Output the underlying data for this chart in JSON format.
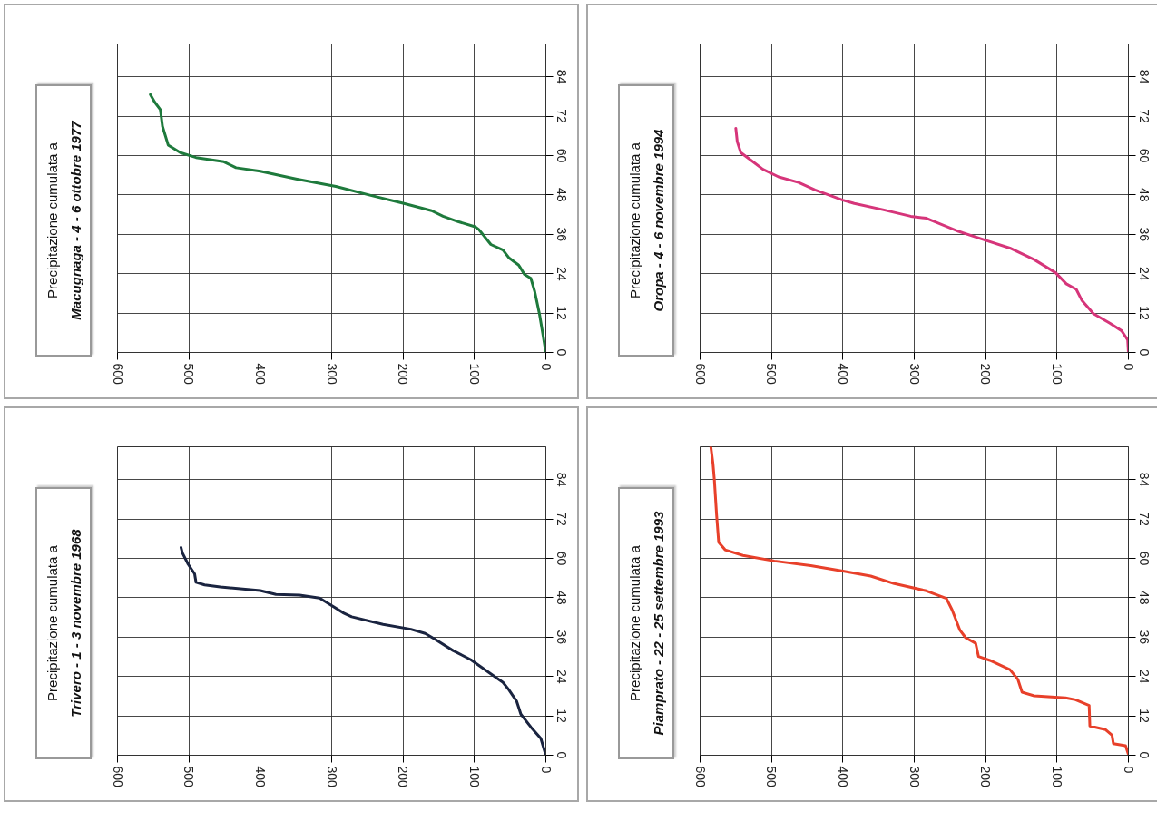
{
  "chart_data": [
    {
      "type": "line",
      "title": "Precipitazione cumulata a",
      "subtitle": "Macugnaga - 4 - 6 ottobre 1977",
      "color": "#1e7a3c",
      "x": [
        0,
        4.5,
        9,
        15.6,
        21,
        30,
        38,
        52,
        60,
        77,
        94,
        99,
        122,
        144,
        160,
        200,
        244,
        294,
        350,
        400,
        434,
        451,
        490,
        512,
        529,
        537,
        540,
        548,
        554
      ],
      "values": [
        0,
        6,
        11.8,
        18.6,
        22.6,
        23.8,
        26.6,
        28.9,
        31.2,
        32.9,
        37.5,
        38.3,
        39.8,
        41.5,
        43.2,
        45.5,
        47.8,
        50.6,
        52.9,
        55.2,
        56.3,
        58.1,
        59.4,
        60.9,
        63.2,
        68.9,
        74,
        76.3,
        78.6
      ],
      "xlim": [
        600,
        0
      ],
      "xticks": [
        600,
        500,
        400,
        300,
        200,
        100,
        0
      ],
      "ylim": [
        0,
        94
      ],
      "yticks": [
        0,
        12,
        24,
        36,
        48,
        60,
        72,
        84
      ],
      "grid": true
    },
    {
      "type": "line",
      "title": "Precipitazione cumulata a",
      "subtitle": "Oropa - 4 - 6 novembre 1994",
      "color": "#d6357a",
      "x": [
        0,
        1,
        9.5,
        26,
        49,
        65,
        73,
        87,
        102,
        132,
        166,
        199,
        238,
        283,
        305,
        344,
        384,
        400,
        439,
        462,
        490,
        512,
        529,
        543,
        548,
        550
      ],
      "values": [
        0,
        3.8,
        6.6,
        8.9,
        11.8,
        15.8,
        19.2,
        20.9,
        24.3,
        28.3,
        31.8,
        34.1,
        36.9,
        40.9,
        41.5,
        43.5,
        45.4,
        46.4,
        49.5,
        51.8,
        53.5,
        55.8,
        58.6,
        60.9,
        64.3,
        68.3
      ],
      "xlim": [
        600,
        0
      ],
      "xticks": [
        600,
        500,
        400,
        300,
        200,
        100,
        0
      ],
      "ylim": [
        0,
        94
      ],
      "yticks": [
        0,
        12,
        24,
        36,
        48,
        60,
        72,
        84
      ],
      "grid": true
    },
    {
      "type": "line",
      "title": "Precipitazione cumulata a",
      "subtitle": "Trivero - 1 - 3 novembre 1968",
      "color": "#1a2440",
      "x": [
        0,
        7,
        21,
        35,
        41,
        52,
        60,
        83,
        105,
        130,
        155,
        169,
        189,
        228,
        272,
        283,
        300,
        317,
        345,
        378,
        400,
        456,
        478,
        490,
        492,
        501,
        509,
        511
      ],
      "values": [
        0,
        5.1,
        8.6,
        12.5,
        16.5,
        20,
        22.2,
        25.7,
        29.1,
        31.9,
        35.3,
        37.1,
        38.4,
        39.9,
        42.2,
        43.3,
        45.6,
        47.9,
        48.8,
        49,
        50.2,
        51.3,
        51.9,
        52.7,
        55.3,
        58.2,
        61.6,
        63.3
      ],
      "xlim": [
        600,
        0
      ],
      "xticks": [
        600,
        500,
        400,
        300,
        200,
        100,
        0
      ],
      "ylim": [
        0,
        94
      ],
      "yticks": [
        0,
        12,
        24,
        36,
        48,
        60,
        72,
        84
      ],
      "grid": true
    },
    {
      "type": "line",
      "title": "Precipitazione cumulata a",
      "subtitle": "Piamprato - 22 - 25 settembre 1993",
      "color": "#e8402a",
      "x": [
        0,
        4,
        21,
        23,
        32,
        54,
        55,
        74,
        88,
        132,
        149,
        155,
        166,
        194,
        210,
        214,
        228,
        236,
        241,
        247,
        255,
        283,
        328,
        361,
        400,
        445,
        496,
        540,
        565,
        574,
        577,
        580,
        582,
        585
      ],
      "values": [
        0.3,
        2.9,
        3.5,
        6.1,
        7.8,
        8.9,
        15.2,
        16.9,
        17.5,
        18.1,
        19.2,
        23.2,
        26.1,
        28.9,
        30.1,
        34.1,
        35.8,
        38.1,
        40.9,
        44.3,
        47.8,
        50.1,
        52.3,
        54.6,
        56.1,
        57.8,
        59.2,
        60.9,
        62.6,
        64.9,
        73.5,
        83.8,
        88.9,
        94
      ],
      "xlim": [
        600,
        0
      ],
      "xticks": [
        600,
        500,
        400,
        300,
        200,
        100,
        0
      ],
      "ylim": [
        0,
        94
      ],
      "yticks": [
        0,
        12,
        24,
        36,
        48,
        60,
        72,
        84
      ],
      "grid": true
    }
  ]
}
